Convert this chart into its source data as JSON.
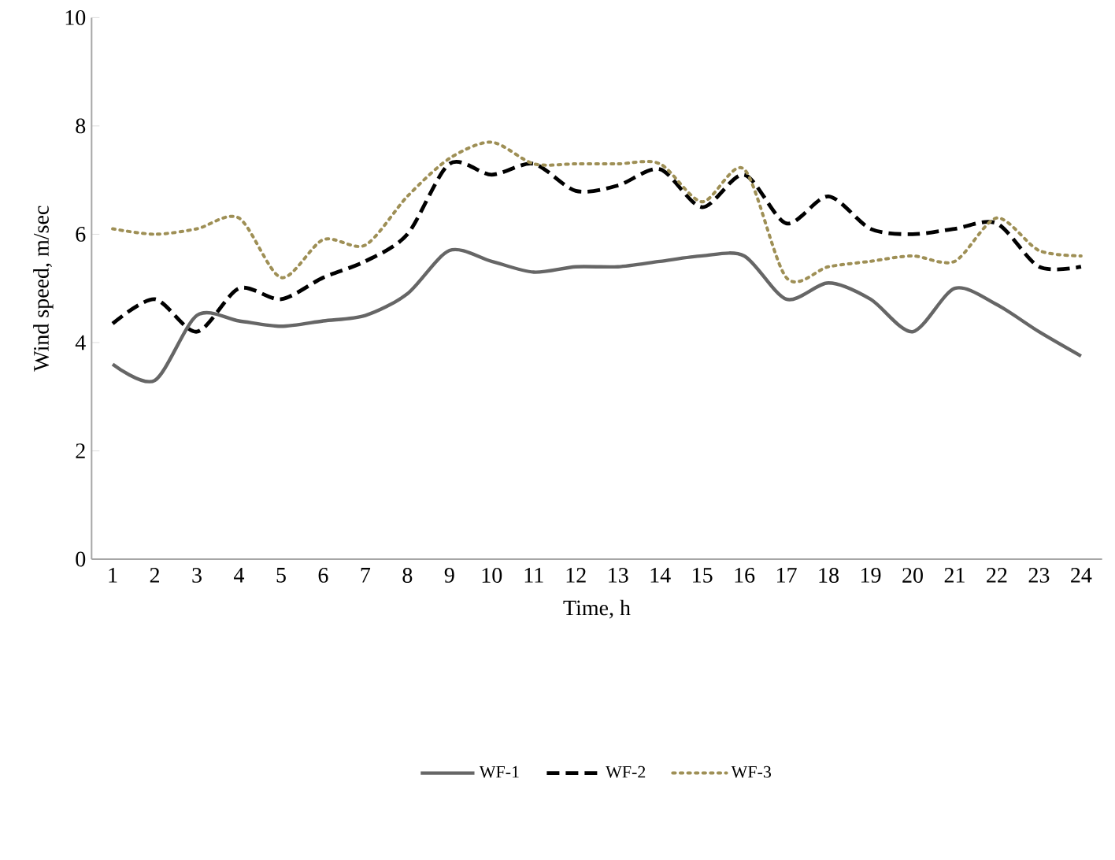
{
  "chart_data": {
    "type": "line",
    "xlabel": "Time, h",
    "ylabel": "Wind speed, m/sec",
    "categories": [
      "1",
      "2",
      "3",
      "4",
      "5",
      "6",
      "7",
      "8",
      "9",
      "10",
      "11",
      "12",
      "13",
      "14",
      "15",
      "16",
      "17",
      "18",
      "19",
      "20",
      "21",
      "22",
      "23",
      "24"
    ],
    "series": [
      {
        "name": "WF-1",
        "color": "#666666",
        "line_style": "solid",
        "values": [
          3.6,
          3.3,
          4.5,
          4.4,
          4.3,
          4.4,
          4.5,
          4.9,
          5.7,
          5.5,
          5.3,
          5.4,
          5.4,
          5.5,
          5.6,
          5.6,
          4.8,
          5.1,
          4.8,
          4.2,
          5.0,
          4.7,
          4.2,
          3.75
        ]
      },
      {
        "name": "WF-2",
        "color": "#000000",
        "line_style": "dashed",
        "values": [
          4.35,
          4.8,
          4.2,
          5.0,
          4.8,
          5.2,
          5.5,
          6.0,
          7.3,
          7.1,
          7.3,
          6.8,
          6.9,
          7.2,
          6.5,
          7.1,
          6.2,
          6.7,
          6.1,
          6.0,
          6.1,
          6.2,
          5.4,
          5.4
        ]
      },
      {
        "name": "WF-3",
        "color": "#9e8f55",
        "line_style": "dotted",
        "values": [
          6.1,
          6.0,
          6.1,
          6.3,
          5.2,
          5.9,
          5.8,
          6.7,
          7.4,
          7.7,
          7.3,
          7.3,
          7.3,
          7.3,
          6.6,
          7.2,
          5.2,
          5.4,
          5.5,
          5.6,
          5.5,
          6.3,
          5.7,
          5.6
        ]
      }
    ],
    "ylim": [
      0,
      10
    ],
    "yticks": [
      0,
      2,
      4,
      6,
      8,
      10
    ],
    "grid": false,
    "legend": "bottom",
    "marker": "none"
  }
}
